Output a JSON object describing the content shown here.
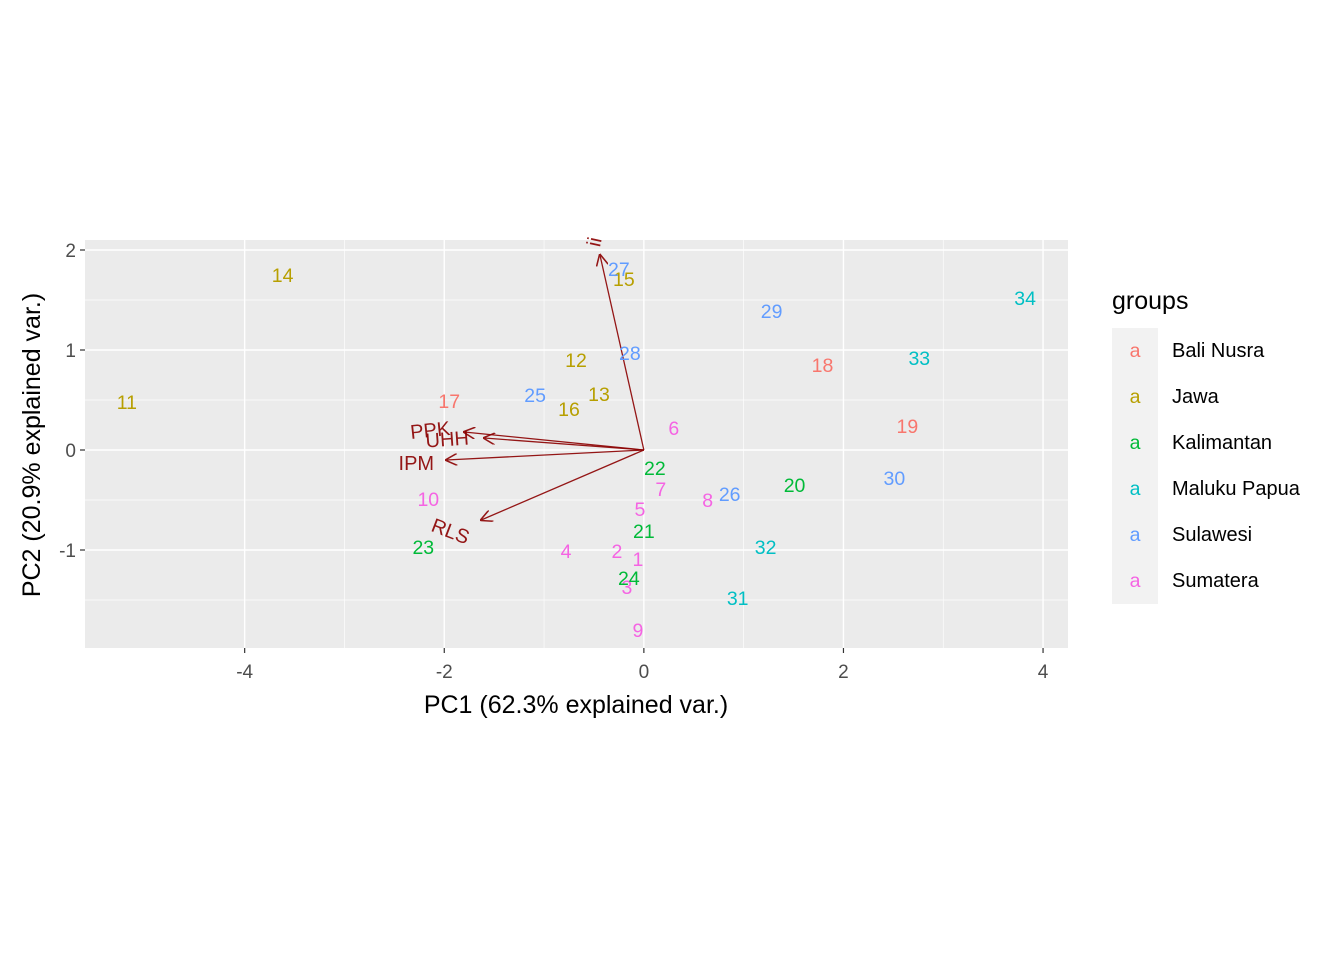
{
  "chart_data": {
    "type": "scatter",
    "xlabel": "PC1 (62.3% explained var.)",
    "ylabel": "PC2 (20.9% explained var.)",
    "xlim": [
      -5.6,
      4.25
    ],
    "ylim": [
      -1.98,
      2.1
    ],
    "x_ticks": [
      -4,
      -2,
      0,
      2,
      4
    ],
    "y_ticks": [
      -1,
      0,
      1,
      2
    ],
    "grid": true,
    "legend": {
      "title": "groups",
      "position": "right",
      "key_glyph": "a",
      "entries": [
        {
          "name": "Bali Nusra",
          "color": "#F8766D"
        },
        {
          "name": "Jawa",
          "color": "#B79F00"
        },
        {
          "name": "Kalimantan",
          "color": "#00BA38"
        },
        {
          "name": "Maluku Papua",
          "color": "#00BFC4"
        },
        {
          "name": "Sulawesi",
          "color": "#619CFF"
        },
        {
          "name": "Sumatera",
          "color": "#F564E3"
        }
      ]
    },
    "points": [
      {
        "label": "1",
        "group": "Sumatera",
        "x": -0.06,
        "y": -1.1
      },
      {
        "label": "2",
        "group": "Sumatera",
        "x": -0.27,
        "y": -1.02
      },
      {
        "label": "3",
        "group": "Sumatera",
        "x": -0.17,
        "y": -1.38
      },
      {
        "label": "4",
        "group": "Sumatera",
        "x": -0.78,
        "y": -1.02
      },
      {
        "label": "5",
        "group": "Sumatera",
        "x": -0.04,
        "y": -0.6
      },
      {
        "label": "6",
        "group": "Sumatera",
        "x": 0.3,
        "y": 0.21
      },
      {
        "label": "7",
        "group": "Sumatera",
        "x": 0.17,
        "y": -0.4
      },
      {
        "label": "8",
        "group": "Sumatera",
        "x": 0.64,
        "y": -0.51
      },
      {
        "label": "9",
        "group": "Sumatera",
        "x": -0.06,
        "y": -1.81
      },
      {
        "label": "10",
        "group": "Sumatera",
        "x": -2.16,
        "y": -0.5
      },
      {
        "label": "11",
        "group": "Jawa",
        "x": -5.18,
        "y": 0.47
      },
      {
        "label": "12",
        "group": "Jawa",
        "x": -0.68,
        "y": 0.89
      },
      {
        "label": "13",
        "group": "Jawa",
        "x": -0.45,
        "y": 0.55
      },
      {
        "label": "14",
        "group": "Jawa",
        "x": -3.62,
        "y": 1.74
      },
      {
        "label": "15",
        "group": "Jawa",
        "x": -0.2,
        "y": 1.7
      },
      {
        "label": "16",
        "group": "Jawa",
        "x": -0.75,
        "y": 0.4
      },
      {
        "label": "17",
        "group": "Bali Nusra",
        "x": -1.95,
        "y": 0.48
      },
      {
        "label": "18",
        "group": "Bali Nusra",
        "x": 1.79,
        "y": 0.84
      },
      {
        "label": "19",
        "group": "Bali Nusra",
        "x": 2.64,
        "y": 0.23
      },
      {
        "label": "20",
        "group": "Kalimantan",
        "x": 1.51,
        "y": -0.36
      },
      {
        "label": "21",
        "group": "Kalimantan",
        "x": 0.0,
        "y": -0.82
      },
      {
        "label": "22",
        "group": "Kalimantan",
        "x": 0.11,
        "y": -0.19
      },
      {
        "label": "23",
        "group": "Kalimantan",
        "x": -2.21,
        "y": -0.98
      },
      {
        "label": "24",
        "group": "Kalimantan",
        "x": -0.15,
        "y": -1.29
      },
      {
        "label": "25",
        "group": "Sulawesi",
        "x": -1.09,
        "y": 0.54
      },
      {
        "label": "26",
        "group": "Sulawesi",
        "x": 0.86,
        "y": -0.45
      },
      {
        "label": "27",
        "group": "Sulawesi",
        "x": -0.25,
        "y": 1.8
      },
      {
        "label": "28",
        "group": "Sulawesi",
        "x": -0.14,
        "y": 0.96
      },
      {
        "label": "29",
        "group": "Sulawesi",
        "x": 1.28,
        "y": 1.38
      },
      {
        "label": "30",
        "group": "Sulawesi",
        "x": 2.51,
        "y": -0.29
      },
      {
        "label": "31",
        "group": "Maluku Papua",
        "x": 0.94,
        "y": -1.49
      },
      {
        "label": "32",
        "group": "Maluku Papua",
        "x": 1.22,
        "y": -0.98
      },
      {
        "label": "33",
        "group": "Maluku Papua",
        "x": 2.76,
        "y": 0.91
      },
      {
        "label": "34",
        "group": "Maluku Papua",
        "x": 3.82,
        "y": 1.51
      }
    ],
    "arrows": [
      {
        "name": "PPK",
        "x": -1.8,
        "y": 0.18,
        "label_x": -2.14,
        "label_y": 0.19,
        "angle": 6
      },
      {
        "name": "UHH",
        "x": -1.6,
        "y": 0.12,
        "label_x": -1.97,
        "label_y": 0.1,
        "angle": 4
      },
      {
        "name": "IPM",
        "x": -1.98,
        "y": -0.1,
        "label_x": -2.28,
        "label_y": -0.14,
        "angle": 0
      },
      {
        "name": "RLS",
        "x": -1.63,
        "y": -0.7,
        "label_x": -1.94,
        "label_y": -0.82,
        "angle": -21
      },
      {
        "name": "ii",
        "x": -0.44,
        "y": 1.95,
        "label_x": -0.49,
        "label_y": 2.08,
        "angle": 78
      }
    ]
  }
}
